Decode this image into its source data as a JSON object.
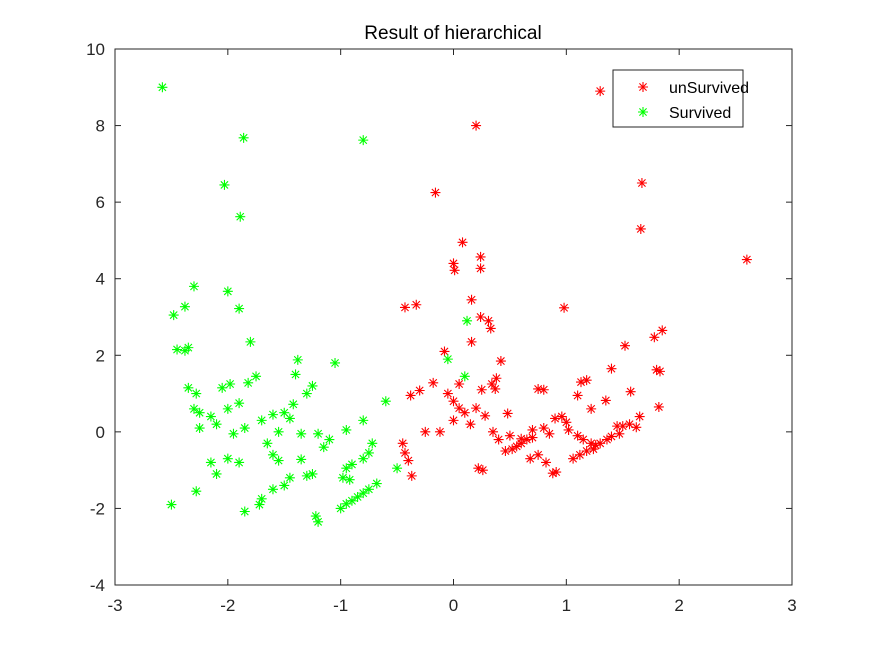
{
  "chart_data": {
    "type": "scatter",
    "title": "Result of hierarchical",
    "xlabel": "",
    "ylabel": "",
    "xlim": [
      -3,
      3
    ],
    "ylim": [
      -4,
      10
    ],
    "x_ticks": [
      -3,
      -2,
      -1,
      0,
      1,
      2,
      3
    ],
    "y_ticks": [
      -4,
      -2,
      0,
      2,
      4,
      6,
      8,
      10
    ],
    "x_tick_labels": [
      "-3",
      "-2",
      "-1",
      "0",
      "1",
      "2",
      "3"
    ],
    "y_tick_labels": [
      "-4",
      "-2",
      "0",
      "2",
      "4",
      "6",
      "8",
      "10"
    ],
    "grid": false,
    "legend_position": "top-right",
    "marker": "asterisk",
    "series": [
      {
        "name": "unSurvived",
        "color": "#ff0000",
        "points": [
          [
            1.3,
            8.9
          ],
          [
            0.2,
            8.0
          ],
          [
            1.67,
            6.5
          ],
          [
            1.66,
            5.3
          ],
          [
            2.6,
            4.5
          ],
          [
            -0.16,
            6.25
          ],
          [
            0.08,
            4.95
          ],
          [
            0.0,
            4.4
          ],
          [
            0.01,
            4.22
          ],
          [
            0.24,
            4.57
          ],
          [
            0.24,
            4.27
          ],
          [
            0.16,
            3.45
          ],
          [
            -0.43,
            3.25
          ],
          [
            -0.33,
            3.32
          ],
          [
            0.98,
            3.24
          ],
          [
            0.24,
            3.0
          ],
          [
            0.31,
            2.9
          ],
          [
            0.33,
            2.7
          ],
          [
            1.85,
            2.65
          ],
          [
            1.78,
            2.47
          ],
          [
            1.52,
            2.25
          ],
          [
            0.16,
            2.35
          ],
          [
            -0.08,
            2.1
          ],
          [
            0.42,
            1.85
          ],
          [
            1.8,
            1.62
          ],
          [
            1.83,
            1.58
          ],
          [
            1.4,
            1.65
          ],
          [
            1.18,
            1.35
          ],
          [
            1.13,
            1.3
          ],
          [
            0.75,
            1.12
          ],
          [
            0.8,
            1.1
          ],
          [
            0.38,
            1.4
          ],
          [
            0.34,
            1.25
          ],
          [
            0.37,
            1.12
          ],
          [
            0.25,
            1.1
          ],
          [
            0.05,
            1.25
          ],
          [
            -0.05,
            1.0
          ],
          [
            -0.18,
            1.28
          ],
          [
            -0.38,
            0.95
          ],
          [
            -0.3,
            1.08
          ],
          [
            1.57,
            1.05
          ],
          [
            1.1,
            0.95
          ],
          [
            1.22,
            0.6
          ],
          [
            1.35,
            0.82
          ],
          [
            1.65,
            0.4
          ],
          [
            1.82,
            0.65
          ],
          [
            -0.25,
            0.0
          ],
          [
            -0.12,
            0.0
          ],
          [
            0.0,
            0.3
          ],
          [
            0.1,
            0.5
          ],
          [
            0.15,
            0.2
          ],
          [
            0.2,
            0.62
          ],
          [
            0.28,
            0.42
          ],
          [
            0.48,
            0.48
          ],
          [
            0.0,
            0.8
          ],
          [
            0.05,
            0.62
          ],
          [
            -0.45,
            -0.3
          ],
          [
            -0.43,
            -0.55
          ],
          [
            -0.4,
            -0.75
          ],
          [
            -0.37,
            -1.15
          ],
          [
            0.22,
            -0.95
          ],
          [
            0.26,
            -1.0
          ],
          [
            0.35,
            0.0
          ],
          [
            0.4,
            -0.2
          ],
          [
            0.5,
            -0.1
          ],
          [
            0.6,
            -0.18
          ],
          [
            0.7,
            0.05
          ],
          [
            0.8,
            0.1
          ],
          [
            0.9,
            0.35
          ],
          [
            1.0,
            0.25
          ],
          [
            1.02,
            0.05
          ],
          [
            1.1,
            -0.1
          ],
          [
            1.15,
            -0.2
          ],
          [
            1.22,
            -0.3
          ],
          [
            1.26,
            -0.35
          ],
          [
            1.3,
            -0.3
          ],
          [
            1.36,
            -0.2
          ],
          [
            1.4,
            -0.12
          ],
          [
            1.47,
            -0.05
          ],
          [
            1.5,
            0.15
          ],
          [
            1.56,
            0.2
          ],
          [
            1.62,
            0.12
          ],
          [
            1.06,
            -0.7
          ],
          [
            1.12,
            -0.6
          ],
          [
            1.18,
            -0.5
          ],
          [
            1.24,
            -0.45
          ],
          [
            0.46,
            -0.5
          ],
          [
            0.52,
            -0.45
          ],
          [
            0.56,
            -0.38
          ],
          [
            0.6,
            -0.3
          ],
          [
            0.65,
            -0.2
          ],
          [
            0.7,
            -0.15
          ],
          [
            0.85,
            -0.05
          ],
          [
            0.88,
            -1.08
          ],
          [
            0.91,
            -1.05
          ],
          [
            0.82,
            -0.8
          ],
          [
            0.75,
            -0.6
          ],
          [
            0.68,
            -0.7
          ],
          [
            0.96,
            0.4
          ],
          [
            1.45,
            0.15
          ]
        ]
      },
      {
        "name": "Survived",
        "color": "#00ff00",
        "points": [
          [
            -2.58,
            9.0
          ],
          [
            -1.86,
            7.68
          ],
          [
            -0.8,
            7.62
          ],
          [
            -2.03,
            6.45
          ],
          [
            -1.89,
            5.62
          ],
          [
            -2.3,
            3.8
          ],
          [
            -2.38,
            3.27
          ],
          [
            -2.48,
            3.05
          ],
          [
            -2.0,
            3.67
          ],
          [
            -1.9,
            3.22
          ],
          [
            0.12,
            2.9
          ],
          [
            -2.35,
            2.2
          ],
          [
            -2.45,
            2.15
          ],
          [
            -2.38,
            2.12
          ],
          [
            -1.8,
            2.35
          ],
          [
            -1.38,
            1.88
          ],
          [
            -1.05,
            1.8
          ],
          [
            0.1,
            1.45
          ],
          [
            -0.05,
            1.9
          ],
          [
            -2.35,
            1.15
          ],
          [
            -2.28,
            1.0
          ],
          [
            -2.05,
            1.15
          ],
          [
            -1.98,
            1.25
          ],
          [
            -1.82,
            1.28
          ],
          [
            -1.75,
            1.45
          ],
          [
            -1.4,
            1.5
          ],
          [
            -1.25,
            1.2
          ],
          [
            -2.25,
            0.5
          ],
          [
            -2.15,
            0.4
          ],
          [
            -2.0,
            0.6
          ],
          [
            -1.9,
            0.75
          ],
          [
            -1.6,
            0.45
          ],
          [
            -1.5,
            0.5
          ],
          [
            -2.3,
            0.6
          ],
          [
            -2.25,
            0.1
          ],
          [
            -1.95,
            -0.05
          ],
          [
            -1.85,
            0.1
          ],
          [
            -1.7,
            0.3
          ],
          [
            -1.55,
            0.0
          ],
          [
            -1.45,
            0.35
          ],
          [
            -1.35,
            -0.05
          ],
          [
            -1.2,
            -0.05
          ],
          [
            -1.1,
            -0.2
          ],
          [
            -2.15,
            -0.8
          ],
          [
            -2.1,
            -1.1
          ],
          [
            -2.0,
            -0.7
          ],
          [
            -1.9,
            -0.8
          ],
          [
            -1.6,
            -0.6
          ],
          [
            -1.55,
            -0.75
          ],
          [
            -1.45,
            -1.2
          ],
          [
            -2.28,
            -1.55
          ],
          [
            -1.85,
            -2.08
          ],
          [
            -1.72,
            -1.9
          ],
          [
            -1.6,
            -1.5
          ],
          [
            -1.5,
            -1.4
          ],
          [
            -1.3,
            -1.15
          ],
          [
            -1.25,
            -1.1
          ],
          [
            -1.22,
            -2.2
          ],
          [
            -1.2,
            -2.35
          ],
          [
            -1.0,
            -2.0
          ],
          [
            -0.95,
            -1.88
          ],
          [
            -0.9,
            -1.8
          ],
          [
            -0.85,
            -1.7
          ],
          [
            -0.8,
            -1.6
          ],
          [
            -0.75,
            -1.5
          ],
          [
            -0.68,
            -1.35
          ],
          [
            -0.98,
            -1.2
          ],
          [
            -0.95,
            -0.95
          ],
          [
            -0.9,
            -0.85
          ],
          [
            -0.8,
            -0.7
          ],
          [
            -0.75,
            -0.55
          ],
          [
            -0.72,
            -0.3
          ],
          [
            -0.6,
            0.8
          ],
          [
            -0.8,
            0.3
          ],
          [
            -0.95,
            0.05
          ],
          [
            -0.5,
            -0.95
          ],
          [
            -2.5,
            -1.9
          ],
          [
            -1.3,
            1.0
          ],
          [
            -1.42,
            0.72
          ],
          [
            -2.1,
            0.2
          ],
          [
            -1.65,
            -0.3
          ],
          [
            -1.35,
            -0.72
          ],
          [
            -1.15,
            -0.4
          ],
          [
            -0.92,
            -1.25
          ],
          [
            -1.7,
            -1.75
          ]
        ]
      }
    ]
  }
}
